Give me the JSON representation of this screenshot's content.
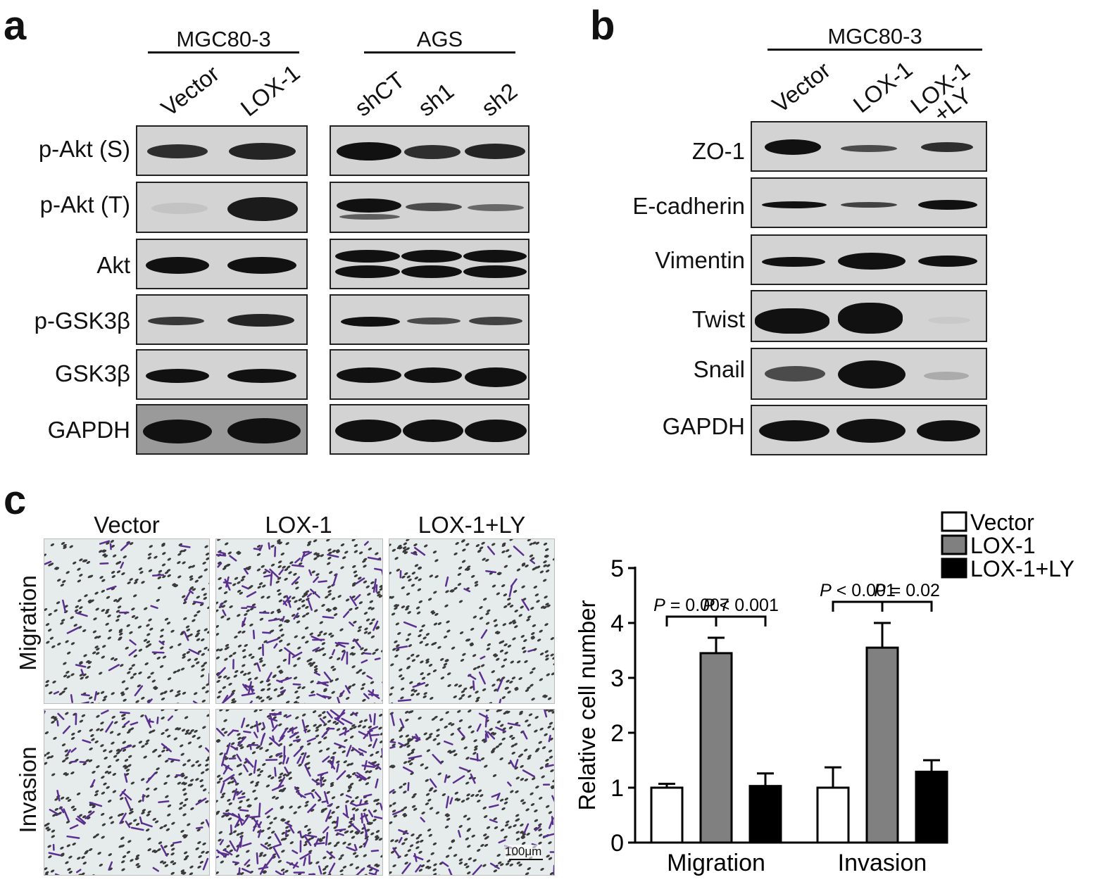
{
  "panel_a": {
    "letter": "a",
    "groups": [
      {
        "title": "MGC80-3",
        "lanes": [
          "Vector",
          "LOX-1"
        ]
      },
      {
        "title": "AGS",
        "lanes": [
          "shCT",
          "sh1",
          "sh2"
        ]
      }
    ],
    "rows": [
      "p-Akt (S)",
      "p-Akt (T)",
      "Akt",
      "p-GSK3β",
      "GSK3β",
      "GAPDH"
    ]
  },
  "panel_b": {
    "letter": "b",
    "group_title": "MGC80-3",
    "lanes": [
      "Vector",
      "LOX-1",
      "LOX-1\n+LY"
    ],
    "lane3_line1": "LOX-1",
    "lane3_line2": "+LY",
    "rows": [
      "ZO-1",
      "E-cadherin",
      "Vimentin",
      "Twist",
      "Snail",
      "GAPDH"
    ]
  },
  "panel_c": {
    "letter": "c",
    "columns": [
      "Vector",
      "LOX-1",
      "LOX-1+LY"
    ],
    "rows": [
      "Migration",
      "Invasion"
    ],
    "scale_bar": "100μm"
  },
  "chart_data": {
    "type": "bar",
    "categories": [
      "Migration",
      "Invasion"
    ],
    "series": [
      {
        "name": "Vector",
        "values": [
          1.0,
          1.0
        ],
        "errors": [
          0.07,
          0.37
        ],
        "color": "#ffffff"
      },
      {
        "name": "LOX-1",
        "values": [
          3.45,
          3.55
        ],
        "errors": [
          0.28,
          0.45
        ],
        "color": "#808080"
      },
      {
        "name": "LOX-1+LY",
        "values": [
          1.03,
          1.29
        ],
        "errors": [
          0.23,
          0.21
        ],
        "color": "#000000"
      }
    ],
    "ylabel": "Relative cell number",
    "xlabel": "",
    "ylim": [
      0,
      5
    ],
    "yticks": [
      "0",
      "1",
      "2",
      "3",
      "4",
      "5"
    ],
    "annotations": [
      {
        "group": "Migration",
        "from": "Vector",
        "to": "LOX-1",
        "prefix": "P",
        "text": " = 0.007"
      },
      {
        "group": "Migration",
        "from": "LOX-1",
        "to": "LOX-1+LY",
        "prefix": "P",
        "text": " < 0.001"
      },
      {
        "group": "Invasion",
        "from": "Vector",
        "to": "LOX-1",
        "prefix": "P",
        "text": " < 0.001"
      },
      {
        "group": "Invasion",
        "from": "LOX-1",
        "to": "LOX-1+LY",
        "prefix": "P",
        "text": " = 0.02"
      }
    ],
    "legend_position": "top-right"
  }
}
